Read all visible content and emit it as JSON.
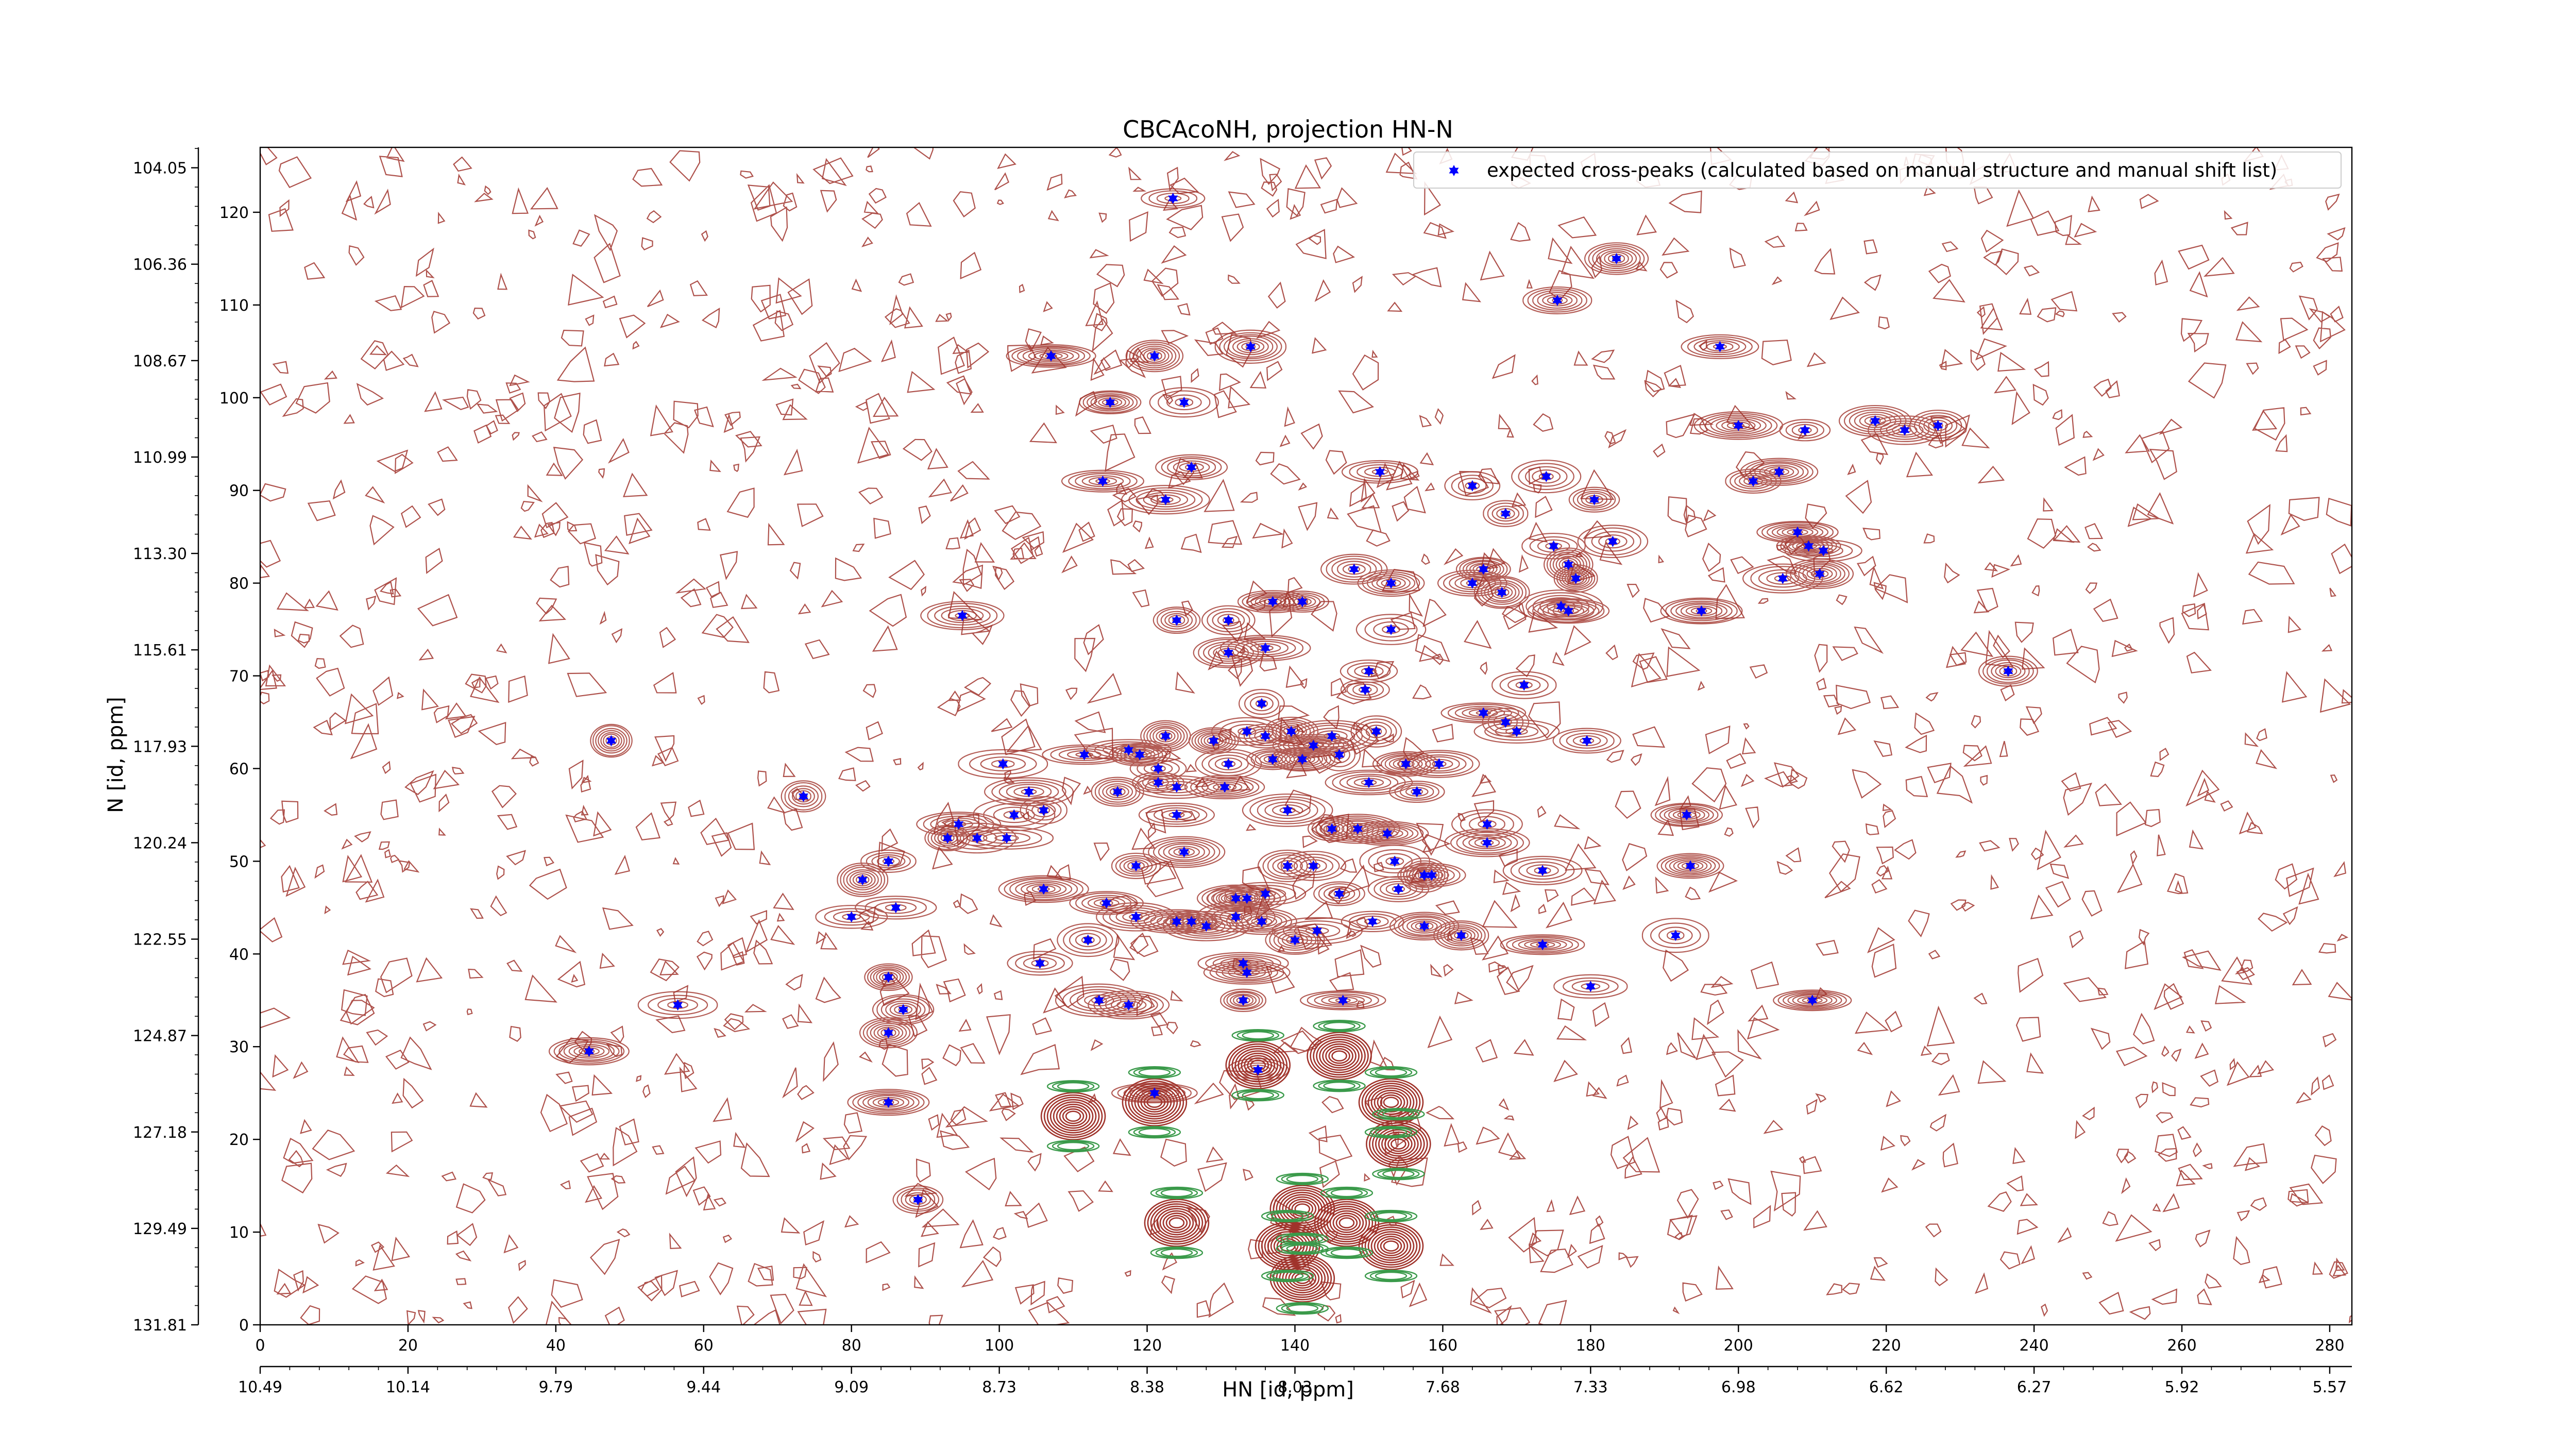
{
  "chart_data": {
    "type": "scatter",
    "title": "CBCAcoNH, projection HN-N",
    "xlabel": "HN [id, ppm]",
    "ylabel": "N [id, ppm]",
    "xlim": [
      0,
      283
    ],
    "ylim": [
      0,
      127
    ],
    "x_ticks": [
      0,
      20,
      40,
      60,
      80,
      100,
      120,
      140,
      160,
      180,
      200,
      220,
      240,
      260,
      280
    ],
    "y_ticks": [
      0,
      10,
      20,
      30,
      40,
      50,
      60,
      70,
      80,
      90,
      100,
      110,
      120
    ],
    "ppm_x_ticks": [
      "10.49",
      "10.14",
      "9.79",
      "9.44",
      "9.09",
      "8.73",
      "8.38",
      "8.03",
      "7.68",
      "7.33",
      "6.98",
      "6.62",
      "6.27",
      "5.92",
      "5.57"
    ],
    "ppm_x_positions": [
      0,
      20,
      40,
      60,
      80,
      100,
      120,
      140,
      160,
      180,
      200,
      220,
      240,
      260,
      280
    ],
    "ppm_y_ticks": [
      "131.81",
      "129.49",
      "127.18",
      "124.87",
      "122.55",
      "120.24",
      "117.93",
      "115.61",
      "113.30",
      "110.99",
      "108.67",
      "106.36",
      "104.05"
    ],
    "ppm_y_positions": [
      0,
      10.4,
      20.8,
      31.2,
      41.6,
      52.0,
      62.4,
      72.8,
      83.2,
      93.6,
      104.0,
      114.4,
      124.8
    ],
    "legend": {
      "label": "expected cross-peaks (calculated based on manual structure and manual shift list)",
      "position": "top-right"
    },
    "colors": {
      "peak": "#0000ff",
      "contour_positive": "#a0332b",
      "contour_negative": "#3a9a4a"
    },
    "series": [
      {
        "name": "expected cross-peaks (calculated based on manual structure and manual shift list)",
        "points": [
          [
            123.5,
            121.5
          ],
          [
            183.5,
            115
          ],
          [
            175.5,
            110.5
          ],
          [
            197.5,
            105.5
          ],
          [
            134,
            105.5
          ],
          [
            107,
            104.5
          ],
          [
            121,
            104.5
          ],
          [
            115,
            99.5
          ],
          [
            125,
            99.5
          ],
          [
            200,
            97
          ],
          [
            218.5,
            97.5
          ],
          [
            222.5,
            96.5
          ],
          [
            227,
            97
          ],
          [
            209,
            96.5
          ],
          [
            126,
            92.5
          ],
          [
            114,
            91
          ],
          [
            122.5,
            89
          ],
          [
            151.5,
            92
          ],
          [
            164,
            90.5
          ],
          [
            174,
            91.5
          ],
          [
            202,
            91
          ],
          [
            205.5,
            92
          ],
          [
            180.5,
            89
          ],
          [
            168.5,
            87.5
          ],
          [
            175,
            84
          ],
          [
            183,
            84.5
          ],
          [
            208,
            85.5
          ],
          [
            209.5,
            84
          ],
          [
            211.5,
            83.5
          ],
          [
            165.5,
            81.5
          ],
          [
            178,
            80.5
          ],
          [
            206,
            80.5
          ],
          [
            148,
            81.5
          ],
          [
            153,
            80
          ],
          [
            177,
            82
          ],
          [
            164,
            80
          ],
          [
            168,
            79
          ],
          [
            211,
            81
          ],
          [
            137,
            78
          ],
          [
            141,
            78
          ],
          [
            176,
            77.5
          ],
          [
            177,
            77
          ],
          [
            95,
            76.5
          ],
          [
            124,
            76
          ],
          [
            131,
            76
          ],
          [
            195,
            77
          ],
          [
            153,
            75
          ],
          [
            150,
            70.5
          ],
          [
            131,
            72.5
          ],
          [
            136,
            73
          ],
          [
            171,
            69
          ],
          [
            149.5,
            68.5
          ],
          [
            236.5,
            70.5
          ],
          [
            165.5,
            66
          ],
          [
            135.5,
            67
          ],
          [
            170,
            64
          ],
          [
            168.5,
            65
          ],
          [
            179.5,
            63
          ],
          [
            151,
            64
          ],
          [
            145,
            63.5
          ],
          [
            142.5,
            62.5
          ],
          [
            133.5,
            64
          ],
          [
            136,
            63.5
          ],
          [
            139.5,
            64
          ],
          [
            129,
            63
          ],
          [
            122.5,
            63.5
          ],
          [
            117.5,
            62
          ],
          [
            119,
            61.5
          ],
          [
            111.5,
            61.5
          ],
          [
            131,
            60.5
          ],
          [
            121.5,
            60
          ],
          [
            100.5,
            60.5
          ],
          [
            137,
            61
          ],
          [
            146,
            61.5
          ],
          [
            155,
            60.5
          ],
          [
            159.5,
            60.5
          ],
          [
            141,
            61
          ],
          [
            47.5,
            63
          ],
          [
            121.5,
            58.5
          ],
          [
            116,
            57.5
          ],
          [
            124,
            58
          ],
          [
            130.5,
            58
          ],
          [
            150,
            58.5
          ],
          [
            156.5,
            57.5
          ],
          [
            73.5,
            57
          ],
          [
            104,
            57.5
          ],
          [
            106,
            55.5
          ],
          [
            124,
            55
          ],
          [
            139,
            55.5
          ],
          [
            145,
            53.5
          ],
          [
            148.5,
            53.5
          ],
          [
            152.5,
            53
          ],
          [
            166,
            54
          ],
          [
            193,
            55
          ],
          [
            102,
            55
          ],
          [
            94.5,
            54
          ],
          [
            93,
            52.5
          ],
          [
            97,
            52.5
          ],
          [
            101,
            52.5
          ],
          [
            125,
            51
          ],
          [
            118.5,
            49.5
          ],
          [
            166,
            52
          ],
          [
            85,
            50
          ],
          [
            153.5,
            50
          ],
          [
            139,
            49.5
          ],
          [
            142.5,
            49.5
          ],
          [
            173.5,
            49
          ],
          [
            158.5,
            48.5
          ],
          [
            157.5,
            48.5
          ],
          [
            193.5,
            49.5
          ],
          [
            81.5,
            48
          ],
          [
            106,
            47
          ],
          [
            136,
            46.5
          ],
          [
            146,
            46.5
          ],
          [
            154,
            47
          ],
          [
            114.5,
            45.5
          ],
          [
            133.5,
            46
          ],
          [
            132,
            46
          ],
          [
            118.5,
            44
          ],
          [
            86,
            45
          ],
          [
            80,
            44
          ],
          [
            126,
            43.5
          ],
          [
            128,
            43
          ],
          [
            135.5,
            43.5
          ],
          [
            143,
            42.5
          ],
          [
            150.5,
            43.5
          ],
          [
            157.5,
            43
          ],
          [
            162.5,
            42
          ],
          [
            173.5,
            41
          ],
          [
            191.5,
            42
          ],
          [
            132,
            44
          ],
          [
            112,
            41.5
          ],
          [
            140,
            41.5
          ],
          [
            124,
            43.5
          ],
          [
            105.5,
            39
          ],
          [
            133,
            39
          ],
          [
            133.5,
            38
          ],
          [
            85,
            37.5
          ],
          [
            180,
            36.5
          ],
          [
            56.5,
            34.5
          ],
          [
            113.5,
            35
          ],
          [
            117.5,
            34.5
          ],
          [
            133,
            35
          ],
          [
            87,
            34
          ],
          [
            146.5,
            35
          ],
          [
            210,
            35
          ],
          [
            85,
            31.5
          ],
          [
            44.5,
            29.5
          ],
          [
            135,
            27.5
          ],
          [
            121,
            25
          ],
          [
            85,
            24
          ],
          [
            89,
            13.5
          ]
        ]
      }
    ]
  }
}
